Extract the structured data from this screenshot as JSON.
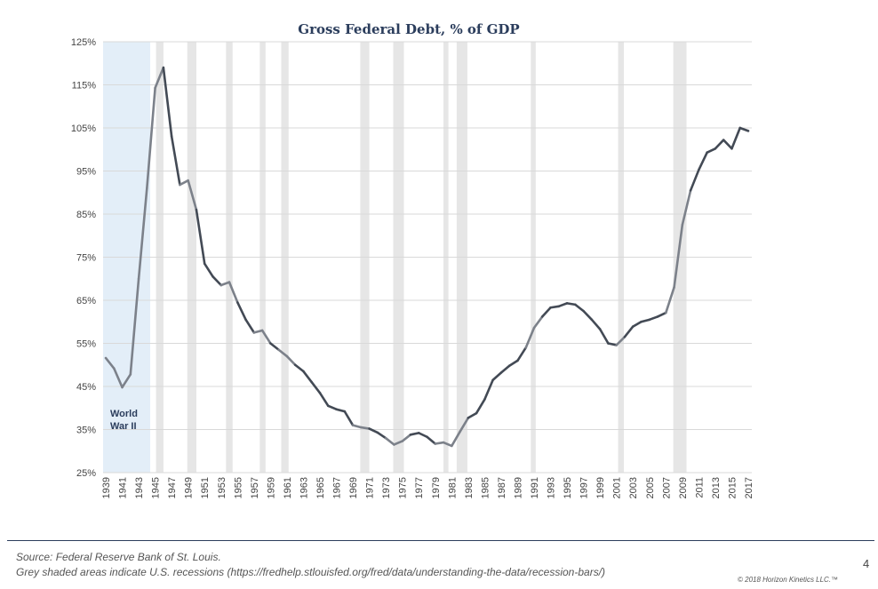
{
  "chart_data": {
    "type": "line",
    "title": "Gross Federal Debt, % of GDP",
    "xlabel": "",
    "ylabel": "",
    "xlim": [
      1939,
      2017
    ],
    "ylim": [
      25,
      125
    ],
    "yticks": [
      "25%",
      "35%",
      "45%",
      "55%",
      "65%",
      "75%",
      "85%",
      "95%",
      "105%",
      "115%",
      "125%"
    ],
    "xticks": [
      "1939",
      "1941",
      "1943",
      "1945",
      "1947",
      "1949",
      "1951",
      "1953",
      "1955",
      "1957",
      "1959",
      "1961",
      "1963",
      "1965",
      "1967",
      "1969",
      "1971",
      "1973",
      "1975",
      "1977",
      "1979",
      "1981",
      "1983",
      "1985",
      "1987",
      "1989",
      "1991",
      "1993",
      "1995",
      "1997",
      "1999",
      "2001",
      "2003",
      "2005",
      "2007",
      "2009",
      "2011",
      "2013",
      "2015",
      "2017"
    ],
    "grid": true,
    "x": [
      1939,
      1940,
      1941,
      1942,
      1943,
      1944,
      1945,
      1946,
      1947,
      1948,
      1949,
      1950,
      1951,
      1952,
      1953,
      1954,
      1955,
      1956,
      1957,
      1958,
      1959,
      1960,
      1961,
      1962,
      1963,
      1964,
      1965,
      1966,
      1967,
      1968,
      1969,
      1970,
      1971,
      1972,
      1973,
      1974,
      1975,
      1976,
      1977,
      1978,
      1979,
      1980,
      1981,
      1982,
      1983,
      1984,
      1985,
      1986,
      1987,
      1988,
      1989,
      1990,
      1991,
      1992,
      1993,
      1994,
      1995,
      1996,
      1997,
      1998,
      1999,
      2000,
      2001,
      2002,
      2003,
      2004,
      2005,
      2006,
      2007,
      2008,
      2009,
      2010,
      2011,
      2012,
      2013,
      2014,
      2015,
      2016,
      2017
    ],
    "values": [
      51.6,
      49.2,
      44.8,
      47.8,
      70,
      91,
      114.3,
      119,
      103,
      91.8,
      92.8,
      86,
      73.5,
      70.5,
      68.5,
      69.2,
      64.5,
      60.5,
      57.5,
      58,
      55,
      53.5,
      52,
      50,
      48.5,
      46,
      43.5,
      40.5,
      39.7,
      39.2,
      36,
      35.5,
      35.2,
      34.3,
      33,
      31.5,
      32.3,
      33.8,
      34.2,
      33.3,
      31.7,
      32,
      31.2,
      34.5,
      37.7,
      38.8,
      42,
      46.5,
      48.2,
      49.8,
      51,
      54,
      58.6,
      61.2,
      63.3,
      63.6,
      64.3,
      64,
      62.5,
      60.5,
      58.3,
      55,
      54.6,
      56.5,
      58.9,
      60,
      60.5,
      61.2,
      62.1,
      68,
      82.5,
      90.5,
      95.3,
      99.3,
      100.2,
      102.2,
      100.2,
      105,
      104.3
    ],
    "recessions": [
      [
        1945.1,
        1946.0
      ],
      [
        1948.9,
        1950.0
      ],
      [
        1953.6,
        1954.4
      ],
      [
        1957.7,
        1958.4
      ],
      [
        1960.3,
        1961.2
      ],
      [
        1969.9,
        1971.0
      ],
      [
        1973.9,
        1975.2
      ],
      [
        1980.0,
        1980.6
      ],
      [
        1981.6,
        1982.9
      ],
      [
        1990.6,
        1991.2
      ],
      [
        2001.2,
        2001.9
      ],
      [
        2007.9,
        2009.5
      ]
    ],
    "war_period": {
      "range": [
        1939,
        1944.4
      ],
      "label_line1": "World",
      "label_line2": "War II"
    },
    "colors": {
      "line": "#434a55",
      "line_recession": "#7c818a",
      "recession": "#e6e6e6",
      "war": "#e3eef8",
      "grid": "#d9d9d9",
      "title": "#2b3d5c"
    }
  },
  "footer": {
    "source": "Source: Federal Reserve Bank of St. Louis.",
    "note": "Grey shaded areas indicate U.S. recessions (https://fredhelp.stlouisfed.org/fred/data/understanding-the-data/recession-bars/)",
    "page_number": "4",
    "copyright": "© 2018 Horizon Kinetics LLC.™"
  }
}
